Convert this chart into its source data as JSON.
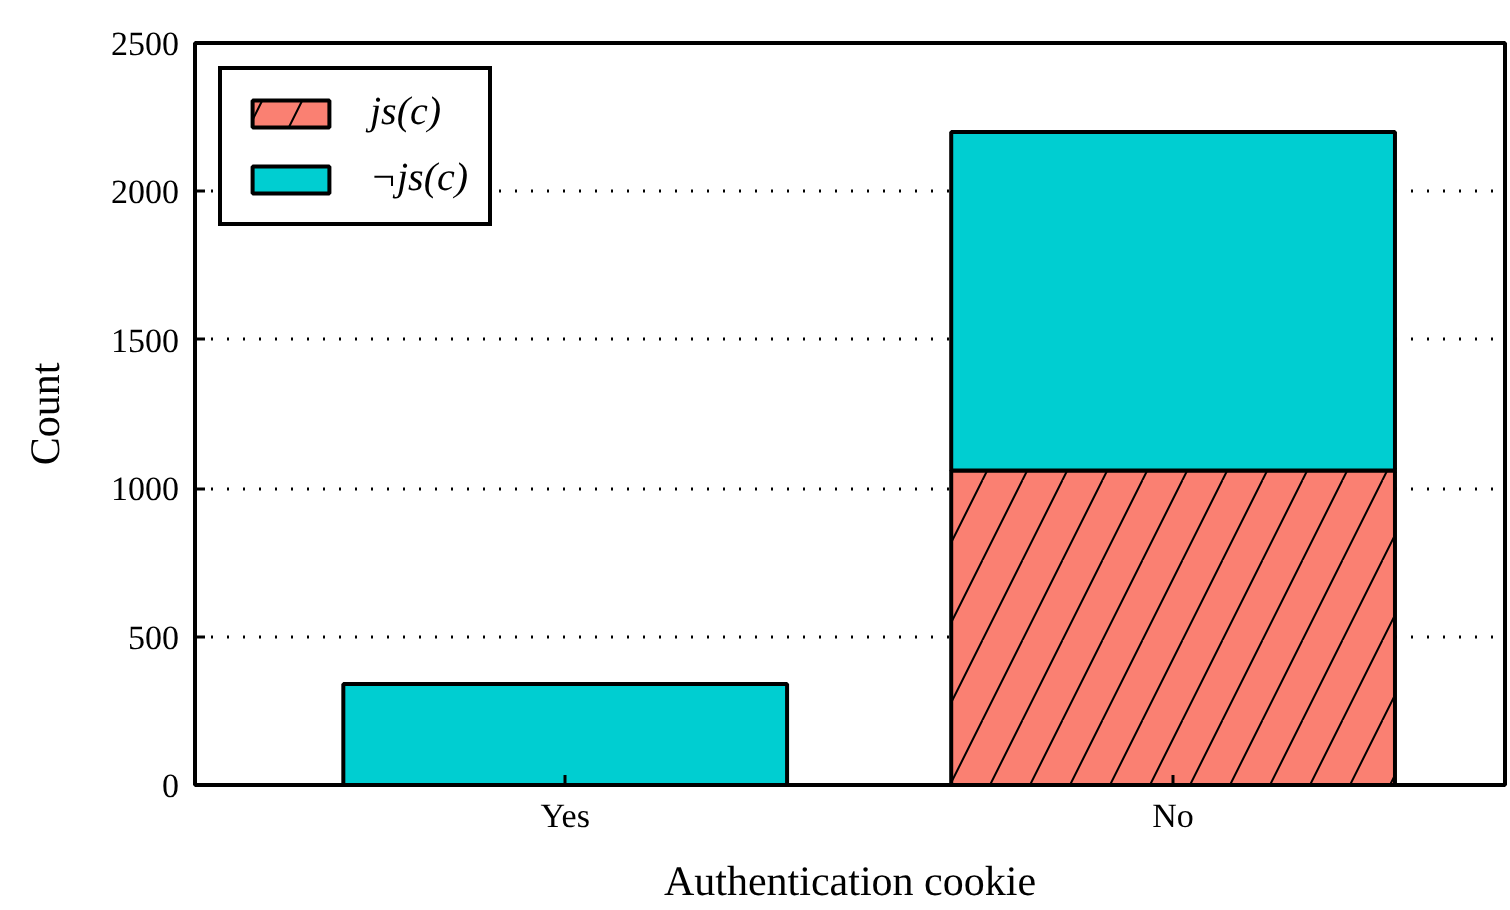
{
  "chart_data": {
    "type": "bar",
    "stacked": true,
    "xlabel": "Authentication cookie",
    "ylabel": "Count",
    "categories": [
      "Yes",
      "No"
    ],
    "series": [
      {
        "name": "js(c)",
        "color": "#fa8072",
        "values": [
          0,
          1060
        ]
      },
      {
        "name": "¬js(c)",
        "color": "#00ced1",
        "values": [
          340,
          1140
        ]
      }
    ],
    "ylim": [
      0,
      2500
    ],
    "yticks": [
      0,
      500,
      1000,
      1500,
      2000,
      2500
    ],
    "grid": "y",
    "legend": "top left"
  }
}
